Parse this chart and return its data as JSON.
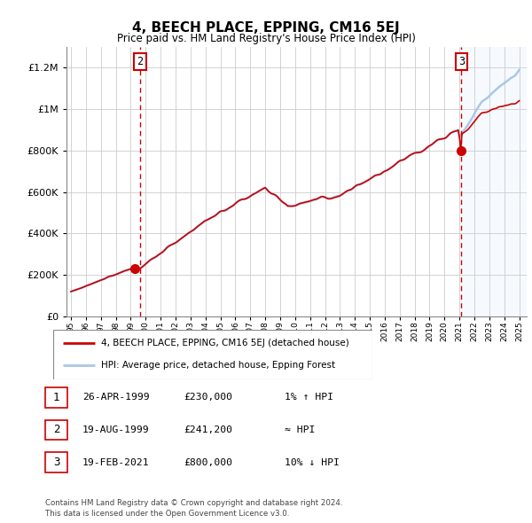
{
  "title": "4, BEECH PLACE, EPPING, CM16 5EJ",
  "subtitle": "Price paid vs. HM Land Registry's House Price Index (HPI)",
  "legend_line1": "4, BEECH PLACE, EPPING, CM16 5EJ (detached house)",
  "legend_line2": "HPI: Average price, detached house, Epping Forest",
  "transaction1_label": "1",
  "transaction1_date": "26-APR-1999",
  "transaction1_price": "£230,000",
  "transaction1_hpi": "1% ↑ HPI",
  "transaction2_label": "2",
  "transaction2_date": "19-AUG-1999",
  "transaction2_price": "£241,200",
  "transaction2_hpi": "≈ HPI",
  "transaction3_label": "3",
  "transaction3_date": "19-FEB-2021",
  "transaction3_price": "£800,000",
  "transaction3_hpi": "10% ↓ HPI",
  "footer": "Contains HM Land Registry data © Crown copyright and database right 2024.\nThis data is licensed under the Open Government Licence v3.0.",
  "hpi_line_color": "#aac8e8",
  "price_line_color": "#cc0000",
  "marker_color": "#cc0000",
  "dashed_line_color": "#cc0000",
  "shade_color": "#ddeeff",
  "background_color": "#ffffff",
  "grid_color": "#cccccc",
  "ylim": [
    0,
    1300000
  ],
  "yticks": [
    0,
    200000,
    400000,
    600000,
    800000,
    1000000,
    1200000
  ],
  "ytick_labels": [
    "£0",
    "£200K",
    "£400K",
    "£600K",
    "£800K",
    "£1M",
    "£1.2M"
  ],
  "t1_year": 1999.292,
  "t2_year": 1999.625,
  "t3_year": 2021.125,
  "t1_price": 230000,
  "t2_price": 241200,
  "t3_price": 800000
}
